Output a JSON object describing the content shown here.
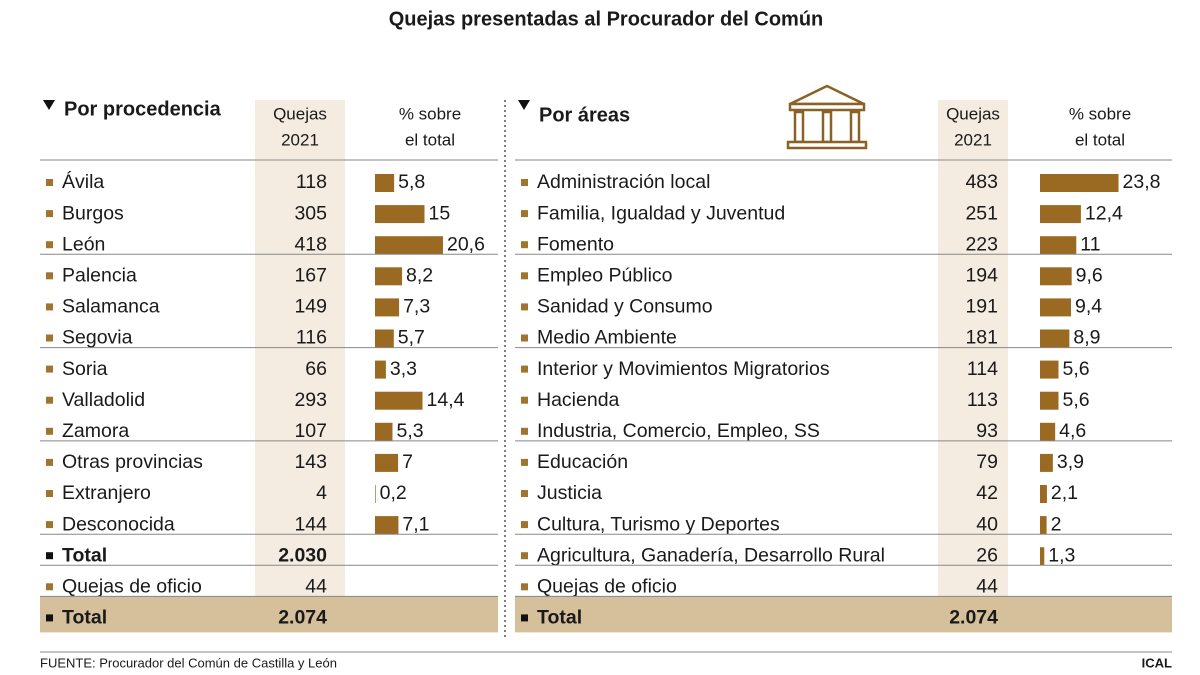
{
  "title": "Quejas presentadas al Procurador del Común",
  "left": {
    "heading": "Por procedencia",
    "quejas_header": [
      "Quejas",
      "2021"
    ],
    "pct_header": [
      "% sobre",
      "el total"
    ],
    "rows": [
      {
        "name": "Ávila",
        "quejas": 118,
        "pct": 5.8,
        "pct_label": "5,8"
      },
      {
        "name": "Burgos",
        "quejas": 305,
        "pct": 15
      },
      {
        "name": "León",
        "quejas": 418,
        "pct": 20.6,
        "pct_label": "20,6"
      },
      {
        "name": "Palencia",
        "quejas": 167,
        "pct": 8.2,
        "pct_label": "8,2"
      },
      {
        "name": "Salamanca",
        "quejas": 149,
        "pct": 7.3,
        "pct_label": "7,3"
      },
      {
        "name": "Segovia",
        "quejas": 116,
        "pct": 5.7,
        "pct_label": "5,7"
      },
      {
        "name": "Soria",
        "quejas": 66,
        "pct": 3.3,
        "pct_label": "3,3"
      },
      {
        "name": "Valladolid",
        "quejas": 293,
        "pct": 14.4,
        "pct_label": "14,4"
      },
      {
        "name": "Zamora",
        "quejas": 107,
        "pct": 5.3,
        "pct_label": "5,3"
      },
      {
        "name": "Otras provincias",
        "quejas": 143,
        "pct": 7
      },
      {
        "name": "Extranjero",
        "quejas": 4,
        "pct": 0.2,
        "pct_label": "0,2"
      },
      {
        "name": "Desconocida",
        "quejas": 144,
        "pct": 7.1,
        "pct_label": "7,1"
      }
    ],
    "subtotal": {
      "name": "Total",
      "quejas": "2.030"
    },
    "oficio": {
      "name": "Quejas de oficio",
      "quejas": 44
    },
    "total": {
      "name": "Total",
      "quejas": "2.074"
    }
  },
  "right": {
    "heading": "Por áreas",
    "quejas_header": [
      "Quejas",
      "2021"
    ],
    "pct_header": [
      "% sobre",
      "el total"
    ],
    "rows": [
      {
        "name": "Administración local",
        "quejas": 483,
        "pct": 23.8,
        "pct_label": "23,8"
      },
      {
        "name": "Familia, Igualdad y Juventud",
        "quejas": 251,
        "pct": 12.4,
        "pct_label": "12,4"
      },
      {
        "name": "Fomento",
        "quejas": 223,
        "pct": 11
      },
      {
        "name": "Empleo Público",
        "quejas": 194,
        "pct": 9.6,
        "pct_label": "9,6"
      },
      {
        "name": "Sanidad y Consumo",
        "quejas": 191,
        "pct": 9.4,
        "pct_label": "9,4"
      },
      {
        "name": "Medio Ambiente",
        "quejas": 181,
        "pct": 8.9,
        "pct_label": "8,9"
      },
      {
        "name": "Interior y Movimientos Migratorios",
        "quejas": 114,
        "pct": 5.6,
        "pct_label": "5,6"
      },
      {
        "name": "Hacienda",
        "quejas": 113,
        "pct": 5.6,
        "pct_label": "5,6"
      },
      {
        "name": "Industria, Comercio, Empleo, SS",
        "quejas": 93,
        "pct": 4.6,
        "pct_label": "4,6"
      },
      {
        "name": "Educación",
        "quejas": 79,
        "pct": 3.9,
        "pct_label": "3,9"
      },
      {
        "name": "Justicia",
        "quejas": 42,
        "pct": 2.1,
        "pct_label": "2,1"
      },
      {
        "name": "Cultura, Turismo y Deportes",
        "quejas": 40,
        "pct": 2
      },
      {
        "name": "Agricultura, Ganadería, Desarrollo Rural",
        "quejas": 26,
        "pct": 1.3,
        "pct_label": "1,3"
      }
    ],
    "oficio": {
      "name": "Quejas de oficio",
      "quejas": 44
    },
    "total": {
      "name": "Total",
      "quejas": "2.074"
    }
  },
  "source": "FUENTE: Procurador del Común de Castilla y León",
  "credit": "ICAL"
}
